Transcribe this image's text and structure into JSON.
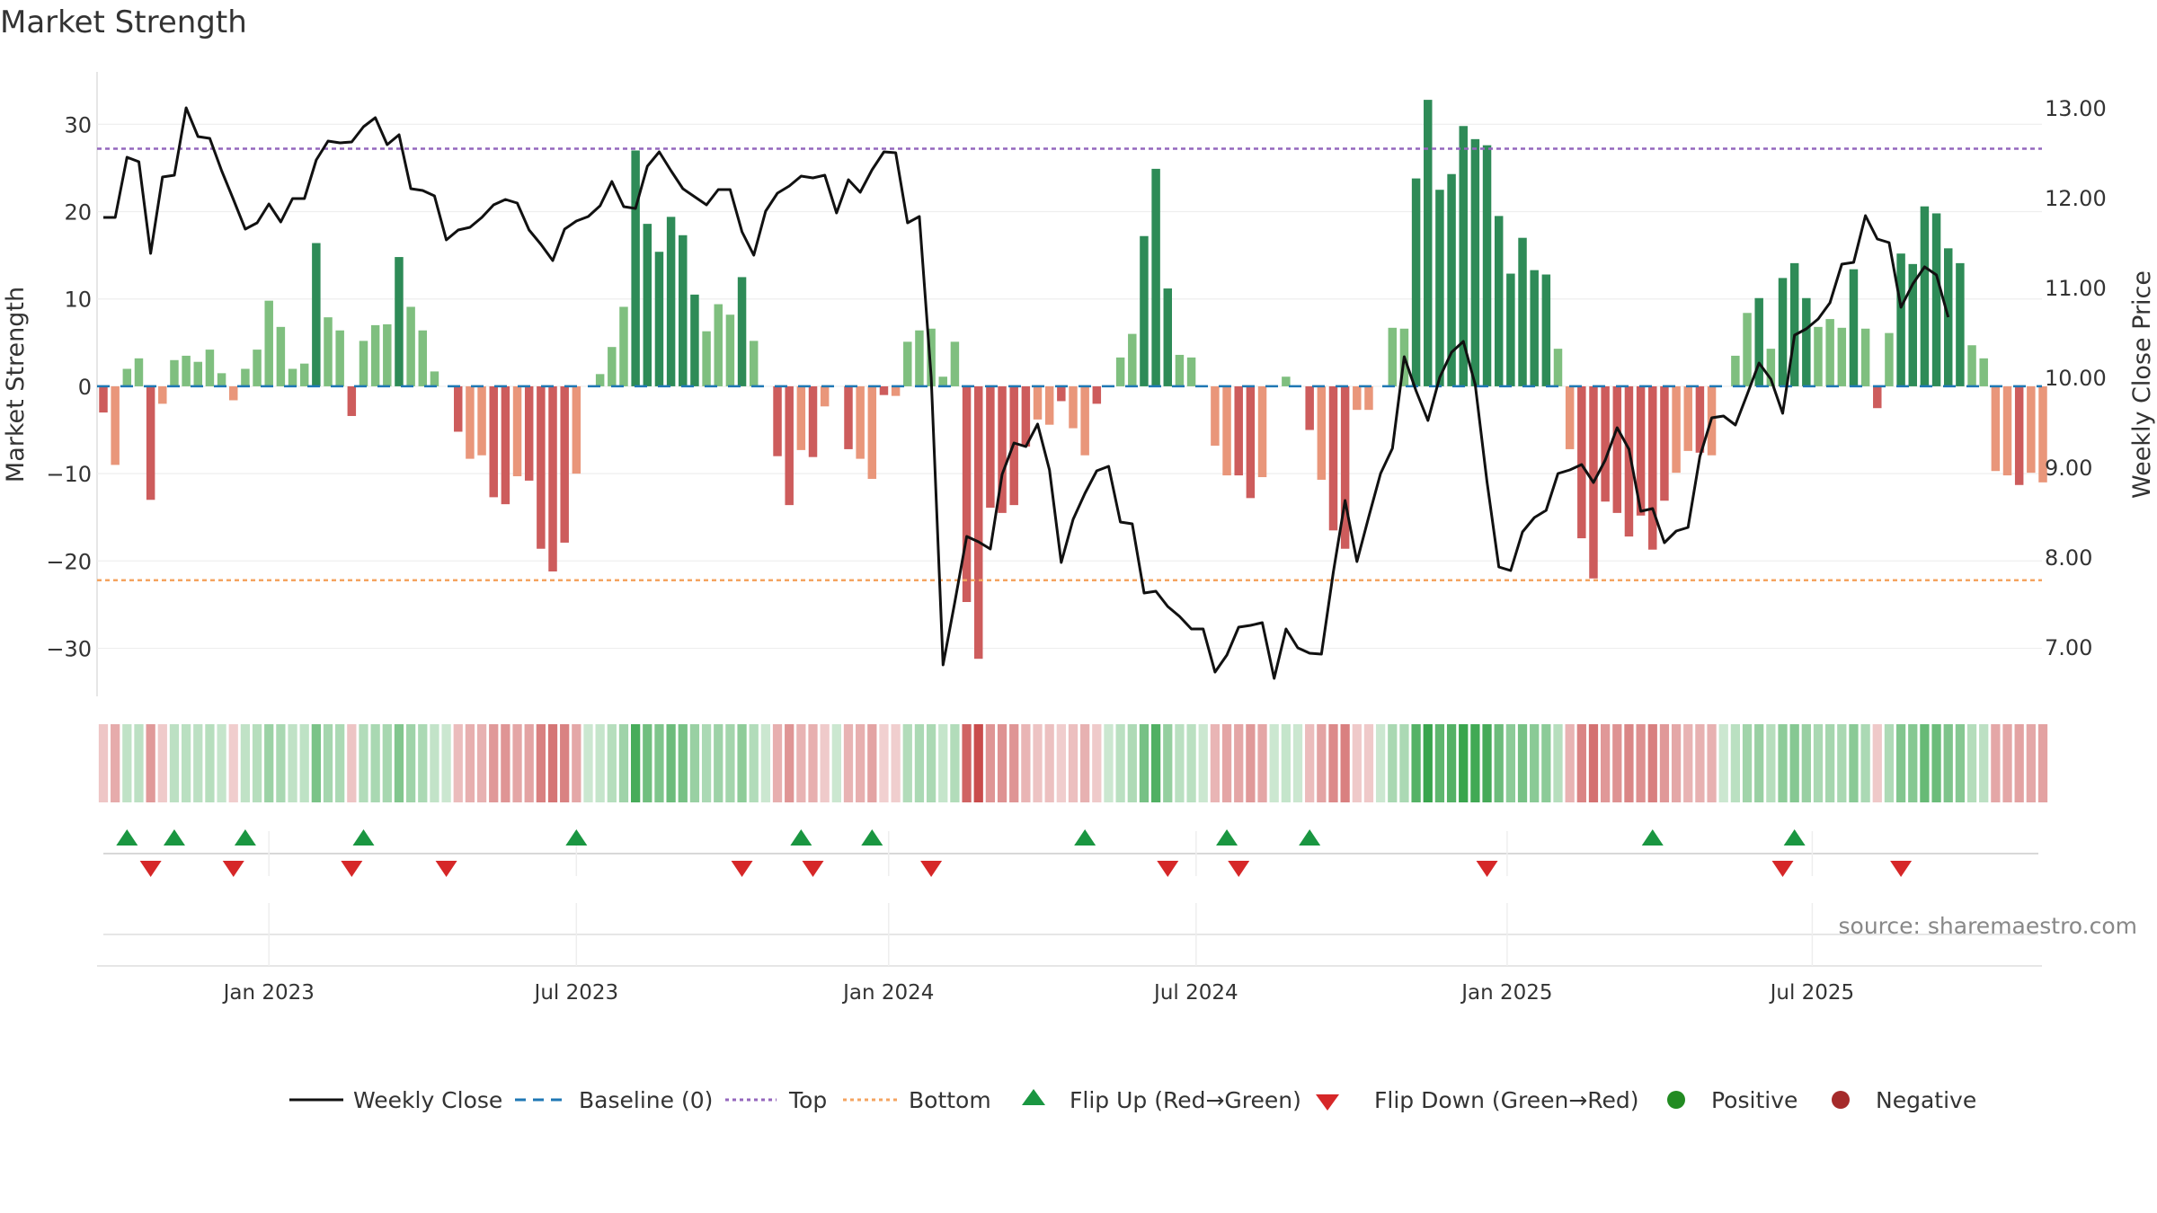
{
  "colors": {
    "green_dark": "#2e8b57",
    "green_light": "#7fbf7f",
    "red_dark": "#cd5c5c",
    "red_light": "#e9967a",
    "baseline": "#1f77b4",
    "top_line": "#9467bd",
    "bottom_line": "#f4a460",
    "close_line": "#111111",
    "flip_up": "#1a9641",
    "flip_down": "#d62728",
    "positive": "#228b22",
    "negative": "#a52a2a"
  },
  "chart_data": {
    "type": "bar",
    "title": "Market Strength",
    "ylabel": "Market Strength",
    "y2label": "Weekly Close Price",
    "ylim": [
      -35.5,
      36
    ],
    "y2lim": [
      6.45,
      13.4
    ],
    "yticks": [
      "30",
      "20",
      "10",
      "0",
      "−10",
      "−20",
      "−30"
    ],
    "ytick_values": [
      30,
      20,
      10,
      0,
      -10,
      -20,
      -30
    ],
    "y2ticks": [
      "13.00",
      "12.00",
      "11.00",
      "10.00",
      "9.00",
      "8.00",
      "7.00"
    ],
    "y2tick_values": [
      13,
      12,
      11,
      10,
      9,
      8,
      7
    ],
    "xticks": [
      "Jan 2023",
      "Jul 2023",
      "Jan 2024",
      "Jul 2024",
      "Jan 2025",
      "Jul 2025"
    ],
    "xtick_weeks": [
      14,
      40,
      66.4,
      92.4,
      118.7,
      144.5
    ],
    "top_level": 27.2,
    "bottom_level": -22.2,
    "weekly_strength": [
      -3,
      -9,
      2,
      3.2,
      -13,
      -2,
      3,
      3.5,
      2.8,
      4.2,
      1.5,
      -1.6,
      2,
      4.2,
      9.8,
      6.8,
      2,
      2.6,
      16.4,
      7.9,
      6.4,
      -3.4,
      5.2,
      7,
      7.1,
      14.8,
      9.1,
      6.4,
      1.7,
      0,
      -5.2,
      -8.3,
      -7.9,
      -12.7,
      -13.5,
      -10.3,
      -10.8,
      -18.6,
      -21.2,
      -17.9,
      -10,
      0,
      1.4,
      4.5,
      9.1,
      27,
      18.6,
      15.4,
      19.4,
      17.3,
      10.5,
      6.3,
      9.4,
      8.2,
      12.5,
      5.2,
      0,
      -8,
      -13.6,
      -7.3,
      -8.1,
      -2.3,
      0,
      -7.2,
      -8.3,
      -10.6,
      -1,
      -1.1,
      5.1,
      6.4,
      6.6,
      1.1,
      5.1,
      -24.7,
      -31.2,
      -13.9,
      -14.5,
      -13.6,
      -6.9,
      -3.8,
      -4.4,
      -1.7,
      -4.8,
      -7.9,
      -2,
      0,
      3.3,
      6,
      17.2,
      24.9,
      11.2,
      3.6,
      3.3,
      0,
      -6.8,
      -10.2,
      -10.2,
      -12.8,
      -10.4,
      0,
      1.1,
      0,
      -5,
      -10.7,
      -16.5,
      -18.6,
      -2.7,
      -2.7,
      0,
      6.7,
      6.6,
      23.8,
      32.8,
      22.5,
      24.3,
      29.8,
      28.3,
      27.6,
      19.5,
      12.9,
      17,
      13.3,
      12.8,
      4.3,
      -7.2,
      -17.4,
      -22,
      -13.2,
      -14.5,
      -17.2,
      -14.8,
      -18.7,
      -13.1,
      -9.9,
      -7.4,
      -7.6,
      -7.9,
      0,
      3.5,
      8.4,
      10.1,
      4.3,
      12.4,
      14.1,
      10.1,
      6.8,
      7.7,
      6.7,
      13.4,
      6.6,
      -2.5,
      6.1,
      15.2,
      14,
      20.6,
      19.8,
      15.8,
      14.1,
      4.7,
      3.2,
      -9.7,
      -10.2,
      -11.3,
      -9.9,
      -11
    ],
    "weekly_close": [
      11.78,
      11.78,
      12.45,
      12.4,
      11.38,
      12.23,
      12.25,
      13.0,
      12.68,
      12.66,
      12.3,
      11.98,
      11.65,
      11.72,
      11.93,
      11.73,
      11.99,
      11.99,
      12.42,
      12.63,
      12.61,
      12.62,
      12.79,
      12.89,
      12.59,
      12.7,
      12.1,
      12.08,
      12.02,
      11.53,
      11.64,
      11.67,
      11.78,
      11.92,
      11.98,
      11.94,
      11.64,
      11.48,
      11.3,
      11.65,
      11.74,
      11.79,
      11.91,
      12.18,
      11.9,
      11.88,
      12.35,
      12.51,
      12.3,
      12.1,
      12.01,
      11.92,
      12.09,
      12.09,
      11.62,
      11.36,
      11.85,
      12.05,
      12.13,
      12.24,
      12.22,
      12.25,
      11.83,
      12.2,
      12.06,
      12.31,
      12.51,
      12.5,
      11.72,
      11.79,
      10.0,
      6.8,
      7.5,
      8.23,
      8.17,
      8.09,
      8.92,
      9.27,
      9.23,
      9.48,
      8.97,
      7.94,
      8.42,
      8.71,
      8.96,
      9.01,
      8.39,
      8.37,
      7.6,
      7.62,
      7.45,
      7.34,
      7.2,
      7.2,
      6.72,
      6.91,
      7.22,
      7.24,
      7.27,
      6.65,
      7.2,
      6.99,
      6.93,
      6.92,
      7.83,
      8.63,
      7.95,
      8.45,
      8.93,
      9.21,
      10.23,
      9.85,
      9.52,
      10.0,
      10.28,
      10.4,
      9.92,
      8.84,
      7.89,
      7.85,
      8.28,
      8.44,
      8.52,
      8.93,
      8.97,
      9.03,
      8.83,
      9.08,
      9.44,
      9.2,
      8.51,
      8.54,
      8.16,
      8.29,
      8.33,
      9.12,
      9.55,
      9.57,
      9.47,
      9.81,
      10.16,
      9.98,
      9.6,
      10.47,
      10.54,
      10.65,
      10.83,
      11.26,
      11.28,
      11.8,
      11.54,
      11.5,
      10.78,
      11.04,
      11.23,
      11.14,
      10.67
    ],
    "flip_up_weeks": [
      2,
      6,
      12,
      22,
      40,
      59,
      65,
      83,
      95,
      102,
      131,
      143
    ],
    "flip_down_weeks": [
      4,
      11,
      21,
      29,
      54,
      60,
      70,
      90,
      96,
      117,
      142,
      152
    ]
  },
  "legend": {
    "weekly_close": "Weekly Close",
    "baseline": "Baseline (0)",
    "top": "Top",
    "bottom": "Bottom",
    "flip_up": "Flip Up (Red→Green)",
    "flip_down": "Flip Down (Green→Red)",
    "positive": "Positive",
    "negative": "Negative"
  },
  "source": "source: sharemaestro.com"
}
